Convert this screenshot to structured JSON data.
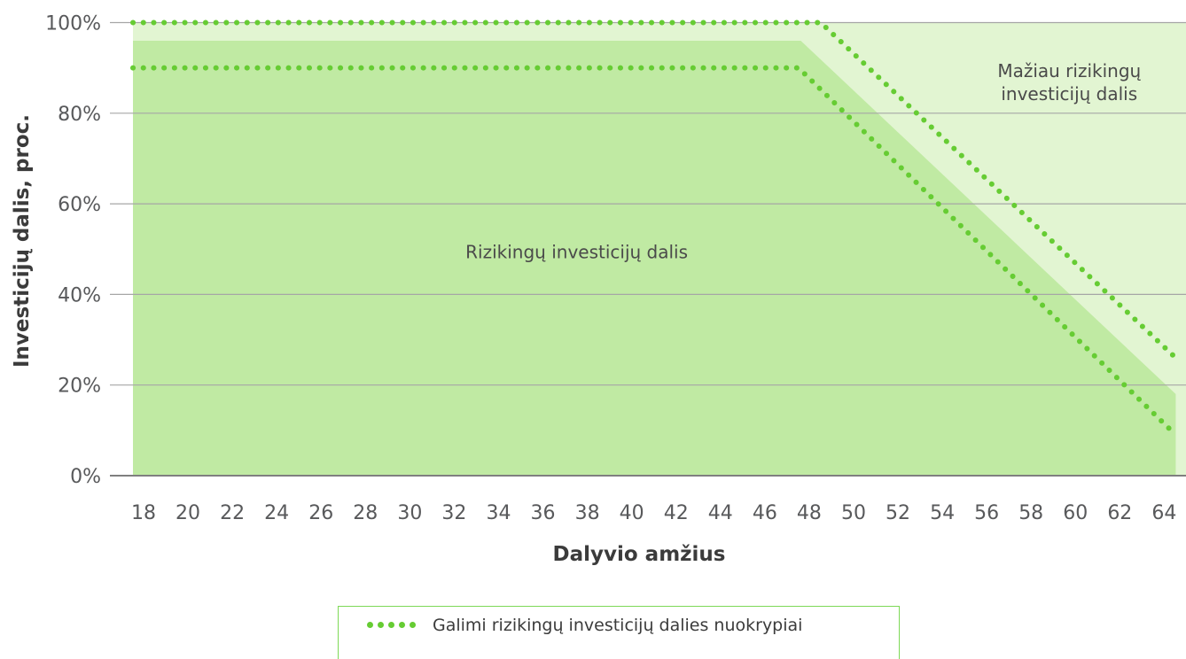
{
  "chart_data": {
    "type": "area",
    "xlabel": "Dalyvio amžius",
    "ylabel": "Investicijų dalis, proc.",
    "x": [
      18,
      20,
      22,
      24,
      26,
      28,
      30,
      32,
      34,
      36,
      38,
      40,
      42,
      44,
      46,
      48,
      50,
      52,
      54,
      56,
      58,
      60,
      62,
      64
    ],
    "x_tick_labels": [
      "18",
      "20",
      "22",
      "24",
      "26",
      "28",
      "30",
      "32",
      "34",
      "36",
      "38",
      "40",
      "42",
      "44",
      "46",
      "48",
      "50",
      "52",
      "54",
      "56",
      "58",
      "60",
      "62",
      "64"
    ],
    "y_tick_labels": [
      "0%",
      "20%",
      "40%",
      "60%",
      "80%",
      "100%"
    ],
    "ylim": [
      0,
      100
    ],
    "xlim": [
      17.5,
      65
    ],
    "grid": true,
    "series": [
      {
        "name": "Rizikingų investicijų dalis",
        "kind": "area",
        "color": "#c0eaa3",
        "points": [
          [
            17.5,
            96
          ],
          [
            48.1,
            96
          ],
          [
            65,
            18
          ]
        ]
      },
      {
        "name": "Mažiau rizikingų investicijų dalis",
        "kind": "area",
        "color": "#e2f5d2",
        "points": [
          [
            17.5,
            100
          ],
          [
            65,
            100
          ]
        ]
      },
      {
        "name": "Galimi rizikingų investicijų dalies nuokrypiai",
        "kind": "dotted-line",
        "color": "#66cc33",
        "upper": [
          [
            17.5,
            100
          ],
          [
            49,
            100
          ],
          [
            65,
            26
          ]
        ],
        "lower": [
          [
            17.5,
            90
          ],
          [
            48,
            90
          ],
          [
            65,
            9
          ]
        ]
      }
    ],
    "region_labels": [
      {
        "lines": [
          "Rizikingų investicijų dalis"
        ],
        "x": 38,
        "y": 48
      },
      {
        "lines": [
          "Mažiau rizikingų",
          "investicijų dalis"
        ],
        "x": 60.2,
        "y": 88
      }
    ],
    "legend": {
      "position": "bottom",
      "label": "Galimi rizikingų investicijų dalies nuokrypiai"
    },
    "colors": {
      "grid": "#a6a6a6",
      "axis": "#7f7f7f",
      "risky_area": "#c0eaa3",
      "safe_area": "#e2f5d2",
      "dotted": "#66cc33"
    }
  }
}
